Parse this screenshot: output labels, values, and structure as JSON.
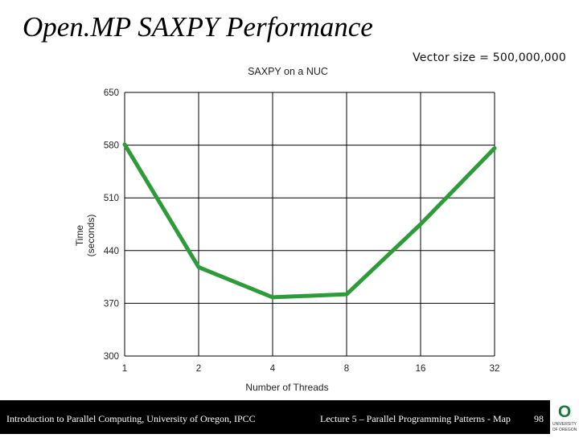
{
  "slide": {
    "title": "Open.MP SAXPY Performance",
    "note": "Vector size = 500,000,000"
  },
  "chart_data": {
    "type": "line",
    "title": "SAXPY on a NUC",
    "xlabel": "Number of Threads",
    "ylabel_line1": "Time",
    "ylabel_line2": "(seconds)",
    "categories": [
      "1",
      "2",
      "4",
      "8",
      "16",
      "32"
    ],
    "series": [
      {
        "values": [
          581,
          418,
          378,
          382,
          475,
          576
        ],
        "color": "#2e9b3a"
      }
    ],
    "yticks": [
      300,
      370,
      440,
      510,
      580,
      650
    ],
    "ylim": [
      300,
      650
    ],
    "grid": true
  },
  "footer": {
    "left": "Introduction to Parallel Computing, University of Oregon, IPCC",
    "center": "Lecture 5 – Parallel Programming Patterns - Map",
    "page": "98"
  },
  "logo": {
    "letter": "O",
    "text_line1": "UNIVERSITY",
    "text_line2": "OF OREGON",
    "color": "#1a7a3c"
  }
}
